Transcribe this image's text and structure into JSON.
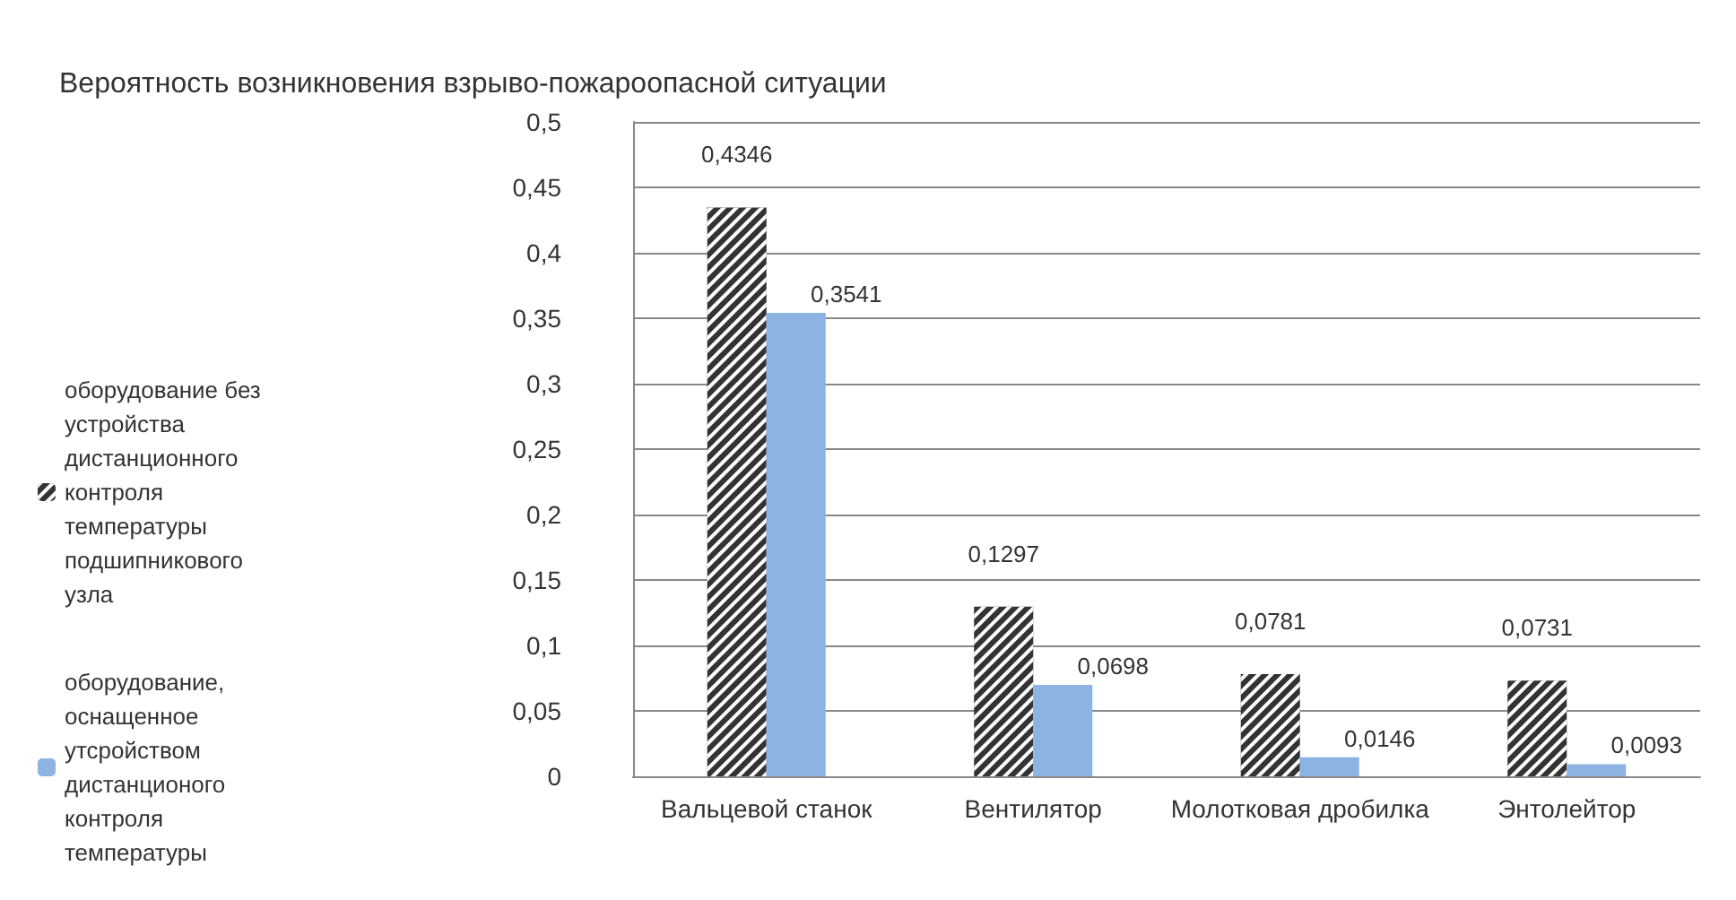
{
  "chart_data": {
    "type": "bar",
    "ylabel": "Вероятность возникновения взрыво-пожароопасной ситуации",
    "categories": [
      "Вальцевой станок",
      "Вентилятор",
      "Молотковая дробилка",
      "Энтолейтор"
    ],
    "series": [
      {
        "name": "оборудование без устройства дистанционного контроля температуры подшипникового узла",
        "color": "#333333",
        "values": [
          0.4346,
          0.1297,
          0.0781,
          0.0731
        ],
        "value_labels": [
          "0,4346",
          "0,1297",
          "0,0781",
          "0,0731"
        ]
      },
      {
        "name": "оборудование, оснащенное утсройством дистанционого контроля температуры",
        "color": "#8db3e2",
        "values": [
          0.3541,
          0.0698,
          0.0146,
          0.0093
        ],
        "value_labels": [
          "0,3541",
          "0,0698",
          "0,0146",
          "0,0093"
        ]
      }
    ],
    "ylim": [
      0,
      0.5
    ],
    "yticks": [
      0,
      {
        "value": 0.05,
        "label": "0,05"
      },
      {
        "value": 0.1,
        "label": "0,1"
      },
      {
        "value": 0.15,
        "label": "0,15"
      },
      {
        "value": 0.2,
        "label": "0,2"
      },
      {
        "value": 0.25,
        "label": "0,25"
      },
      {
        "value": 0.3,
        "label": "0,3"
      },
      {
        "value": 0.35,
        "label": "0,35"
      },
      {
        "value": 0.4,
        "label": "0,4"
      },
      {
        "value": 0.45,
        "label": "0,45"
      },
      {
        "value": 0.5,
        "label": "0,5"
      }
    ],
    "grid": "y",
    "legend": "left"
  }
}
